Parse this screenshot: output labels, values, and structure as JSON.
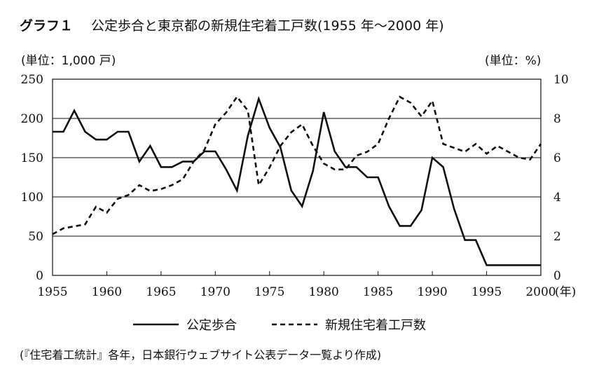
{
  "chart_data": {
    "type": "line",
    "title_label": "グラフ１",
    "title": "公定歩合と東京都の新規住宅着工戸数(1955 年～2000 年)",
    "left_unit": "(単位：1,000 戸)",
    "right_unit": "(単位：%)",
    "x_unit": "(年)",
    "source": "(『住宅着工統計』各年，日本銀行ウェブサイト公表データ一覧より作成)",
    "xlim": [
      1955,
      2000
    ],
    "x_ticks": [
      "1955",
      "1960",
      "1965",
      "1970",
      "1975",
      "1980",
      "1985",
      "1990",
      "1995",
      "2000"
    ],
    "y_left_lim": [
      0,
      250
    ],
    "y_left_ticks": [
      "0",
      "50",
      "100",
      "150",
      "200",
      "250"
    ],
    "y_right_lim": [
      0,
      10
    ],
    "y_right_ticks": [
      "0",
      "2",
      "4",
      "6",
      "8",
      "10"
    ],
    "grid": "horizontal",
    "legend_position": "bottom",
    "series": [
      {
        "name": "公定歩合",
        "axis": "left",
        "style": "solid",
        "color": "#111111",
        "x": [
          1955,
          1956,
          1957,
          1958,
          1959,
          1960,
          1961,
          1962,
          1963,
          1964,
          1965,
          1966,
          1967,
          1968,
          1969,
          1970,
          1971,
          1972,
          1973,
          1974,
          1975,
          1976,
          1977,
          1978,
          1979,
          1980,
          1981,
          1982,
          1983,
          1984,
          1985,
          1986,
          1987,
          1988,
          1989,
          1990,
          1991,
          1992,
          1993,
          1994,
          1995,
          1996,
          1997,
          1998,
          1999,
          2000
        ],
        "values": [
          183,
          183,
          210,
          183,
          173,
          173,
          183,
          183,
          145,
          165,
          138,
          138,
          145,
          145,
          158,
          158,
          135,
          108,
          178,
          225,
          188,
          163,
          108,
          88,
          133,
          208,
          158,
          138,
          138,
          125,
          125,
          88,
          63,
          63,
          83,
          150,
          138,
          85,
          45,
          45,
          13,
          13,
          13,
          13,
          13,
          13
        ]
      },
      {
        "name": "新規住宅着工戸数",
        "axis": "right",
        "style": "dashed",
        "color": "#111111",
        "x": [
          1955,
          1956,
          1957,
          1958,
          1959,
          1960,
          1961,
          1962,
          1963,
          1964,
          1965,
          1966,
          1967,
          1968,
          1969,
          1970,
          1971,
          1972,
          1973,
          1974,
          1975,
          1976,
          1977,
          1978,
          1979,
          1980,
          1981,
          1982,
          1983,
          1984,
          1985,
          1986,
          1987,
          1988,
          1989,
          1990,
          1991,
          1992,
          1993,
          1994,
          1995,
          1996,
          1997,
          1998,
          1999,
          2000
        ],
        "values": [
          2.1,
          2.4,
          2.5,
          2.6,
          3.5,
          3.2,
          3.9,
          4.1,
          4.6,
          4.3,
          4.4,
          4.6,
          4.9,
          5.8,
          6.4,
          7.7,
          8.3,
          9.1,
          8.4,
          4.6,
          5.5,
          6.6,
          7.3,
          7.7,
          6.6,
          5.7,
          5.4,
          5.4,
          6.1,
          6.3,
          6.7,
          8.0,
          9.1,
          8.8,
          8.1,
          8.9,
          6.7,
          6.5,
          6.3,
          6.7,
          6.2,
          6.6,
          6.3,
          6.0,
          5.9,
          6.7
        ]
      }
    ]
  }
}
